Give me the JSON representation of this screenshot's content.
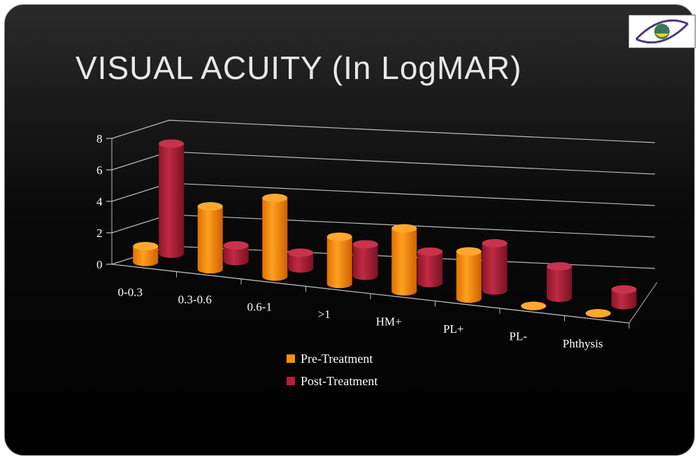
{
  "title": "VISUAL ACUITY (In LogMAR)",
  "logo_alt": "eye logo",
  "chart_data": {
    "type": "bar",
    "style": "3d-cylinder",
    "title": "VISUAL ACUITY (In LogMAR)",
    "xlabel": "",
    "ylabel": "",
    "ylim": [
      0,
      8
    ],
    "yticks": [
      "0",
      "2",
      "4",
      "6",
      "8"
    ],
    "grid": true,
    "legend_position": "bottom",
    "categories": [
      "0-0.3",
      "0.3-0.6",
      "0.6-1",
      ">1",
      "HM+",
      "PL+",
      "PL-",
      "Phthysis"
    ],
    "series": [
      {
        "name": "Pre-Treatment",
        "color": "#ff9000",
        "values": [
          1,
          4,
          5,
          3,
          4,
          3,
          0,
          0
        ]
      },
      {
        "name": "Post-Treatment",
        "color": "#b3203a",
        "values": [
          7,
          1,
          1,
          2,
          2,
          3,
          2,
          1
        ]
      }
    ]
  }
}
